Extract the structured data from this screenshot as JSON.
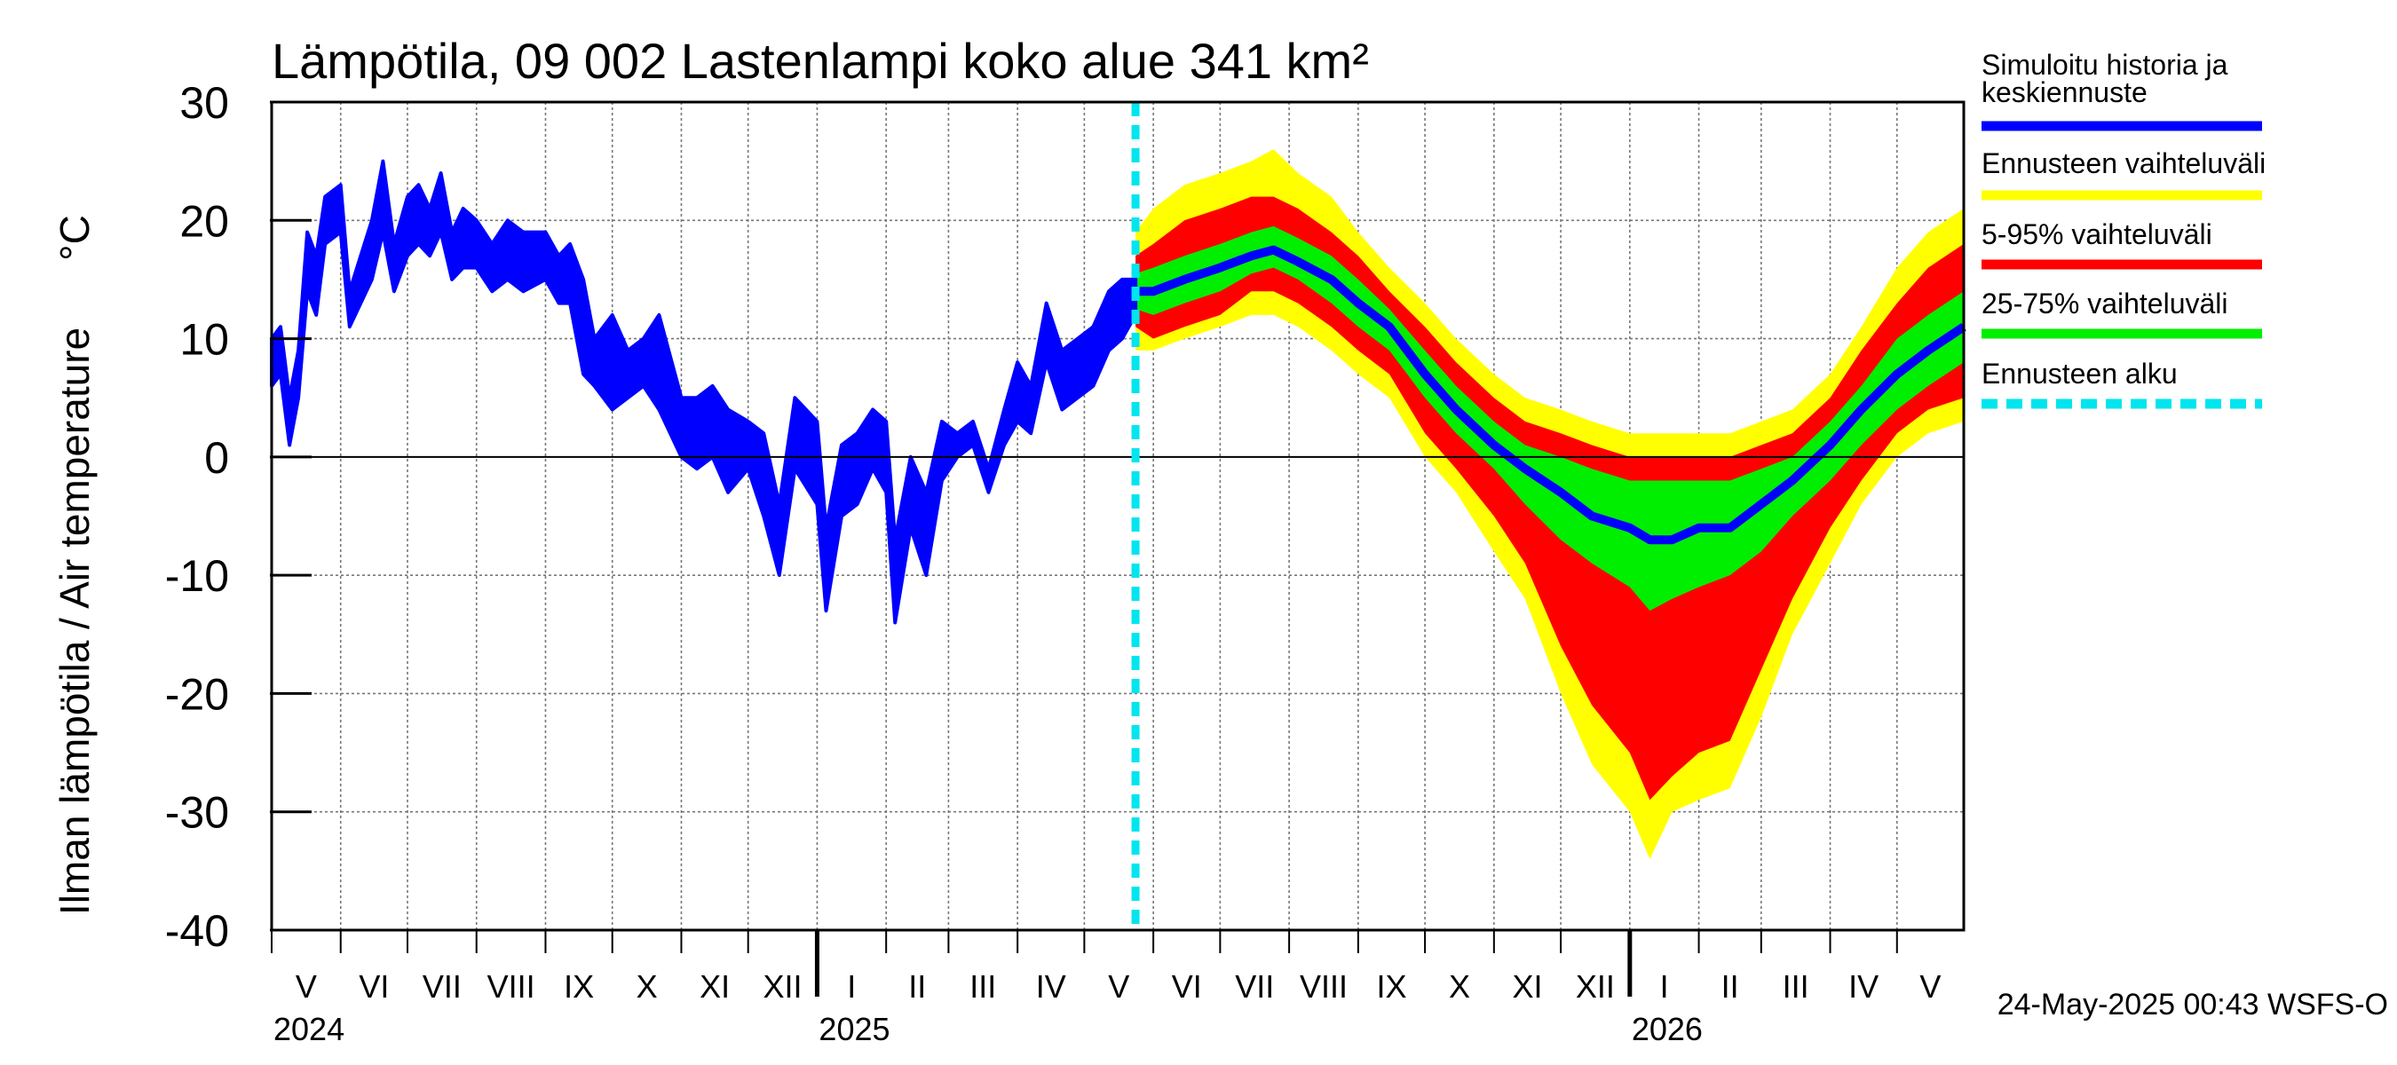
{
  "chart_data": {
    "type": "area",
    "title": "Lämpötila, 09 002 Lastenlampi koko alue 341 km²",
    "ylabel": "Ilman lämpötila / Air temperature",
    "yunit": "°C",
    "ylim": [
      -40,
      30
    ],
    "yticks": [
      30,
      20,
      10,
      0,
      -10,
      -20,
      -30,
      -40
    ],
    "xlim": [
      "2024-05-01",
      "2026-05-31"
    ],
    "grid": true,
    "legend_position": "right",
    "forecast_start": "2025-05-24",
    "timestamp": "24-May-2025 00:43 WSFS-O",
    "month_labels": [
      {
        "date": "2024-05-01",
        "label": "V"
      },
      {
        "date": "2024-06-01",
        "label": "VI"
      },
      {
        "date": "2024-07-01",
        "label": "VII"
      },
      {
        "date": "2024-08-01",
        "label": "VIII"
      },
      {
        "date": "2024-09-01",
        "label": "IX"
      },
      {
        "date": "2024-10-01",
        "label": "X"
      },
      {
        "date": "2024-11-01",
        "label": "XI"
      },
      {
        "date": "2024-12-01",
        "label": "XII"
      },
      {
        "date": "2025-01-01",
        "label": "I"
      },
      {
        "date": "2025-02-01",
        "label": "II"
      },
      {
        "date": "2025-03-01",
        "label": "III"
      },
      {
        "date": "2025-04-01",
        "label": "IV"
      },
      {
        "date": "2025-05-01",
        "label": "V"
      },
      {
        "date": "2025-06-01",
        "label": "VI"
      },
      {
        "date": "2025-07-01",
        "label": "VII"
      },
      {
        "date": "2025-08-01",
        "label": "VIII"
      },
      {
        "date": "2025-09-01",
        "label": "IX"
      },
      {
        "date": "2025-10-01",
        "label": "X"
      },
      {
        "date": "2025-11-01",
        "label": "XI"
      },
      {
        "date": "2025-12-01",
        "label": "XII"
      },
      {
        "date": "2026-01-01",
        "label": "I"
      },
      {
        "date": "2026-02-01",
        "label": "II"
      },
      {
        "date": "2026-03-01",
        "label": "III"
      },
      {
        "date": "2026-04-01",
        "label": "IV"
      },
      {
        "date": "2026-05-01",
        "label": "V"
      }
    ],
    "year_labels": [
      {
        "date": "2024-05-01",
        "label": "2024"
      },
      {
        "date": "2025-01-01",
        "label": "2025"
      },
      {
        "date": "2026-01-01",
        "label": "2026"
      }
    ],
    "legend": [
      {
        "label": "Simuloitu historia ja",
        "label2": "keskiennuste",
        "color": "#0000ff",
        "style": "solid"
      },
      {
        "label": "Ennusteen vaihteluväli",
        "color": "#ffff00",
        "style": "solid"
      },
      {
        "label": "5-95% vaihteluväli",
        "color": "#ff0000",
        "style": "solid"
      },
      {
        "label": "25-75% vaihteluväli",
        "color": "#00ee00",
        "style": "solid"
      },
      {
        "label": "Ennusteen alku",
        "color": "#00e5ee",
        "style": "dashed"
      }
    ],
    "history": [
      {
        "x": "2024-05-01",
        "low": 6,
        "high": 10
      },
      {
        "x": "2024-05-05",
        "low": 7,
        "high": 11
      },
      {
        "x": "2024-05-09",
        "low": 1,
        "high": 5
      },
      {
        "x": "2024-05-13",
        "low": 5,
        "high": 9
      },
      {
        "x": "2024-05-17",
        "low": 14,
        "high": 19
      },
      {
        "x": "2024-05-21",
        "low": 12,
        "high": 17
      },
      {
        "x": "2024-05-25",
        "low": 18,
        "high": 22
      },
      {
        "x": "2024-06-01",
        "low": 19,
        "high": 23
      },
      {
        "x": "2024-06-05",
        "low": 11,
        "high": 14
      },
      {
        "x": "2024-06-10",
        "low": 13,
        "high": 17
      },
      {
        "x": "2024-06-15",
        "low": 15,
        "high": 20
      },
      {
        "x": "2024-06-20",
        "low": 19,
        "high": 25
      },
      {
        "x": "2024-06-25",
        "low": 14,
        "high": 18
      },
      {
        "x": "2024-07-01",
        "low": 17,
        "high": 22
      },
      {
        "x": "2024-07-06",
        "low": 18,
        "high": 23
      },
      {
        "x": "2024-07-11",
        "low": 17,
        "high": 21
      },
      {
        "x": "2024-07-16",
        "low": 19,
        "high": 24
      },
      {
        "x": "2024-07-21",
        "low": 15,
        "high": 19
      },
      {
        "x": "2024-07-26",
        "low": 16,
        "high": 21
      },
      {
        "x": "2024-08-01",
        "low": 16,
        "high": 20
      },
      {
        "x": "2024-08-08",
        "low": 14,
        "high": 18
      },
      {
        "x": "2024-08-15",
        "low": 15,
        "high": 20
      },
      {
        "x": "2024-08-22",
        "low": 14,
        "high": 19
      },
      {
        "x": "2024-09-01",
        "low": 15,
        "high": 19
      },
      {
        "x": "2024-09-07",
        "low": 13,
        "high": 17
      },
      {
        "x": "2024-09-12",
        "low": 13,
        "high": 18
      },
      {
        "x": "2024-09-18",
        "low": 7,
        "high": 15
      },
      {
        "x": "2024-09-23",
        "low": 6,
        "high": 10
      },
      {
        "x": "2024-10-01",
        "low": 4,
        "high": 12
      },
      {
        "x": "2024-10-08",
        "low": 5,
        "high": 9
      },
      {
        "x": "2024-10-15",
        "low": 6,
        "high": 10
      },
      {
        "x": "2024-10-22",
        "low": 4,
        "high": 12
      },
      {
        "x": "2024-11-01",
        "low": 0,
        "high": 5
      },
      {
        "x": "2024-11-08",
        "low": -1,
        "high": 5
      },
      {
        "x": "2024-11-15",
        "low": 0,
        "high": 6
      },
      {
        "x": "2024-11-22",
        "low": -3,
        "high": 4
      },
      {
        "x": "2024-12-01",
        "low": -1,
        "high": 3
      },
      {
        "x": "2024-12-08",
        "low": -5,
        "high": 2
      },
      {
        "x": "2024-12-15",
        "low": -10,
        "high": -4
      },
      {
        "x": "2024-12-22",
        "low": -1,
        "high": 5
      },
      {
        "x": "2025-01-01",
        "low": -4,
        "high": 3
      },
      {
        "x": "2025-01-05",
        "low": -13,
        "high": -6
      },
      {
        "x": "2025-01-12",
        "low": -5,
        "high": 1
      },
      {
        "x": "2025-01-19",
        "low": -4,
        "high": 2
      },
      {
        "x": "2025-01-26",
        "low": -1,
        "high": 4
      },
      {
        "x": "2025-02-01",
        "low": -3,
        "high": 3
      },
      {
        "x": "2025-02-05",
        "low": -14,
        "high": -7
      },
      {
        "x": "2025-02-12",
        "low": -6,
        "high": 0
      },
      {
        "x": "2025-02-19",
        "low": -10,
        "high": -3
      },
      {
        "x": "2025-02-26",
        "low": -2,
        "high": 3
      },
      {
        "x": "2025-03-05",
        "low": 0,
        "high": 2
      },
      {
        "x": "2025-03-12",
        "low": 1,
        "high": 3
      },
      {
        "x": "2025-03-19",
        "low": -3,
        "high": -1
      },
      {
        "x": "2025-03-26",
        "low": 1,
        "high": 4
      },
      {
        "x": "2025-04-01",
        "low": 3,
        "high": 8
      },
      {
        "x": "2025-04-07",
        "low": 2,
        "high": 6
      },
      {
        "x": "2025-04-14",
        "low": 8,
        "high": 13
      },
      {
        "x": "2025-04-21",
        "low": 4,
        "high": 9
      },
      {
        "x": "2025-04-28",
        "low": 5,
        "high": 10
      },
      {
        "x": "2025-05-05",
        "low": 6,
        "high": 11
      },
      {
        "x": "2025-05-12",
        "low": 9,
        "high": 14
      },
      {
        "x": "2025-05-18",
        "low": 10,
        "high": 15
      },
      {
        "x": "2025-05-24",
        "low": 12,
        "high": 15
      }
    ],
    "forecast": [
      {
        "x": "2025-05-24",
        "min": 9,
        "p05": 11,
        "p25": 12.5,
        "median": 14,
        "p75": 15.5,
        "p95": 17,
        "max": 19
      },
      {
        "x": "2025-06-01",
        "min": 9,
        "p05": 10,
        "p25": 12,
        "median": 14,
        "p75": 16,
        "p95": 18,
        "max": 21
      },
      {
        "x": "2025-06-15",
        "min": 10,
        "p05": 11,
        "p25": 13,
        "median": 15,
        "p75": 17,
        "p95": 20,
        "max": 23
      },
      {
        "x": "2025-07-01",
        "min": 11,
        "p05": 12,
        "p25": 14,
        "median": 16,
        "p75": 18,
        "p95": 21,
        "max": 24
      },
      {
        "x": "2025-07-15",
        "min": 12,
        "p05": 14,
        "p25": 15.5,
        "median": 17,
        "p75": 19,
        "p95": 22,
        "max": 25
      },
      {
        "x": "2025-07-25",
        "min": 12,
        "p05": 14,
        "p25": 16,
        "median": 17.5,
        "p75": 19.5,
        "p95": 22,
        "max": 26
      },
      {
        "x": "2025-08-05",
        "min": 11,
        "p05": 13,
        "p25": 15,
        "median": 16.5,
        "p75": 18.5,
        "p95": 21,
        "max": 24
      },
      {
        "x": "2025-08-20",
        "min": 9,
        "p05": 11,
        "p25": 13,
        "median": 15,
        "p75": 17,
        "p95": 19,
        "max": 22
      },
      {
        "x": "2025-09-01",
        "min": 7,
        "p05": 9,
        "p25": 11,
        "median": 13,
        "p75": 15,
        "p95": 17,
        "max": 19
      },
      {
        "x": "2025-09-15",
        "min": 5,
        "p05": 7,
        "p25": 9,
        "median": 11,
        "p75": 12.5,
        "p95": 14,
        "max": 16
      },
      {
        "x": "2025-10-01",
        "min": 0,
        "p05": 2,
        "p25": 5,
        "median": 7,
        "p75": 9,
        "p95": 11,
        "max": 13
      },
      {
        "x": "2025-10-15",
        "min": -3,
        "p05": -1,
        "p25": 2,
        "median": 4,
        "p75": 6,
        "p95": 8,
        "max": 10
      },
      {
        "x": "2025-11-01",
        "min": -8,
        "p05": -5,
        "p25": -1,
        "median": 1,
        "p75": 3,
        "p95": 5,
        "max": 7
      },
      {
        "x": "2025-11-15",
        "min": -12,
        "p05": -9,
        "p25": -4,
        "median": -1,
        "p75": 1,
        "p95": 3,
        "max": 5
      },
      {
        "x": "2025-12-01",
        "min": -20,
        "p05": -16,
        "p25": -7,
        "median": -3,
        "p75": 0,
        "p95": 2,
        "max": 4
      },
      {
        "x": "2025-12-15",
        "min": -26,
        "p05": -21,
        "p25": -9,
        "median": -5,
        "p75": -1,
        "p95": 1,
        "max": 3
      },
      {
        "x": "2026-01-01",
        "min": -30,
        "p05": -25,
        "p25": -11,
        "median": -6,
        "p75": -2,
        "p95": 0,
        "max": 2
      },
      {
        "x": "2026-01-10",
        "min": -34,
        "p05": -29,
        "p25": -13,
        "median": -7,
        "p75": -2,
        "p95": 0,
        "max": 2
      },
      {
        "x": "2026-01-20",
        "min": -30,
        "p05": -27,
        "p25": -12,
        "median": -7,
        "p75": -2,
        "p95": 0,
        "max": 2
      },
      {
        "x": "2026-02-01",
        "min": -29,
        "p05": -25,
        "p25": -11,
        "median": -6,
        "p75": -2,
        "p95": 0,
        "max": 2
      },
      {
        "x": "2026-02-15",
        "min": -28,
        "p05": -24,
        "p25": -10,
        "median": -6,
        "p75": -2,
        "p95": 0,
        "max": 2
      },
      {
        "x": "2026-03-01",
        "min": -22,
        "p05": -18,
        "p25": -8,
        "median": -4,
        "p75": -1,
        "p95": 1,
        "max": 3
      },
      {
        "x": "2026-03-15",
        "min": -15,
        "p05": -12,
        "p25": -5,
        "median": -2,
        "p75": 0,
        "p95": 2,
        "max": 4
      },
      {
        "x": "2026-04-01",
        "min": -9,
        "p05": -6,
        "p25": -2,
        "median": 1,
        "p75": 3,
        "p95": 5,
        "max": 7
      },
      {
        "x": "2026-04-15",
        "min": -4,
        "p05": -2,
        "p25": 1,
        "median": 4,
        "p75": 6,
        "p95": 9,
        "max": 11
      },
      {
        "x": "2026-05-01",
        "min": 0,
        "p05": 2,
        "p25": 4,
        "median": 7,
        "p75": 10,
        "p95": 13,
        "max": 16
      },
      {
        "x": "2026-05-15",
        "min": 2,
        "p05": 4,
        "p25": 6,
        "median": 9,
        "p75": 12,
        "p95": 16,
        "max": 19
      },
      {
        "x": "2026-05-31",
        "min": 3,
        "p05": 5,
        "p25": 8,
        "median": 11,
        "p75": 14,
        "p95": 18,
        "max": 21
      }
    ]
  }
}
